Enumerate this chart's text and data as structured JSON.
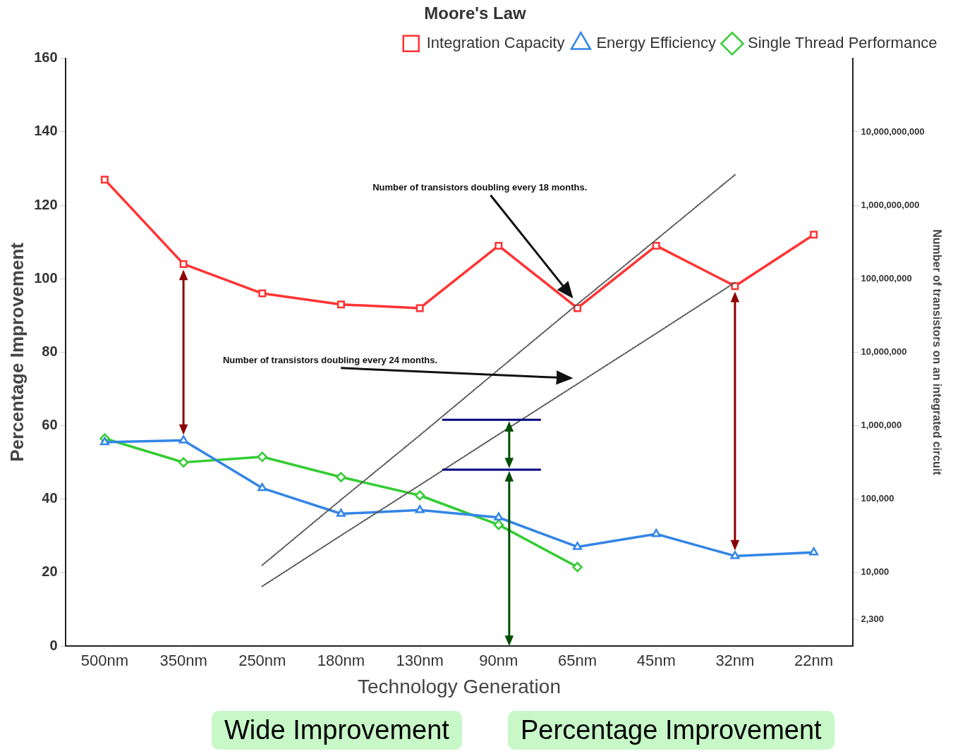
{
  "chart_data": {
    "type": "line",
    "title": "Moore's Law",
    "xlabel": "Technology Generation",
    "ylabel": "Percentage Improvement",
    "y2label": "Number of transistors on an integrated circuit",
    "categories": [
      "500nm",
      "350nm",
      "250nm",
      "180nm",
      "130nm",
      "90nm",
      "65nm",
      "45nm",
      "32nm",
      "22nm"
    ],
    "series": [
      {
        "name": "Integration Capacity",
        "color": "#ff3333",
        "marker": "square",
        "values": [
          127,
          104,
          96,
          93,
          92,
          109,
          92,
          109,
          98,
          112
        ]
      },
      {
        "name": "Energy Efficiency",
        "color": "#3385e6",
        "marker": "triangle",
        "values": [
          55.5,
          56,
          43,
          36,
          37,
          35,
          27,
          30.5,
          24.5,
          25.5
        ]
      },
      {
        "name": "Single Thread Performance",
        "color": "#33cc33",
        "marker": "diamond",
        "values": [
          56.5,
          50,
          51.5,
          46,
          41,
          33,
          21.5,
          null,
          null,
          null
        ]
      },
      {
        "color": "#555555",
        "marker": "none",
        "line_style": "dotted",
        "axis": "y2",
        "values": [
          null,
          null,
          12600,
          98000,
          740000,
          5800000,
          45000000,
          340000000,
          2600000000,
          null
        ]
      },
      {
        "color": "#555555",
        "marker": "none",
        "line_style": "dotted",
        "axis": "y2",
        "values": [
          null,
          null,
          6500,
          32000,
          155000,
          760000,
          3700000,
          18000000,
          89000000,
          null
        ]
      }
    ],
    "ylim": [
      0,
      160
    ],
    "yticks": [
      0,
      20,
      40,
      60,
      80,
      100,
      120,
      140,
      160
    ],
    "log": "y2",
    "y2lim": [
      1000,
      100000000000
    ],
    "y2ticks": [
      {
        "value": 2300,
        "label": "2,300"
      },
      {
        "value": 10000,
        "label": "10,000"
      },
      {
        "value": 100000,
        "label": "100,000"
      },
      {
        "value": 1000000,
        "label": "1,000,000"
      },
      {
        "value": 10000000,
        "label": "10,000,000"
      },
      {
        "value": 100000000,
        "label": "100,000,000"
      },
      {
        "value": 1000000000,
        "label": "1,000,000,000"
      },
      {
        "value": 10000000000,
        "label": "10,000,000,000"
      }
    ],
    "grid": false,
    "legend": "top right",
    "annotations": [
      "Number of transistors doubling every 18 months.",
      "Number of transistors doubling every 24 months.",
      "Wide Improvement",
      "Percentage Improvement"
    ]
  }
}
